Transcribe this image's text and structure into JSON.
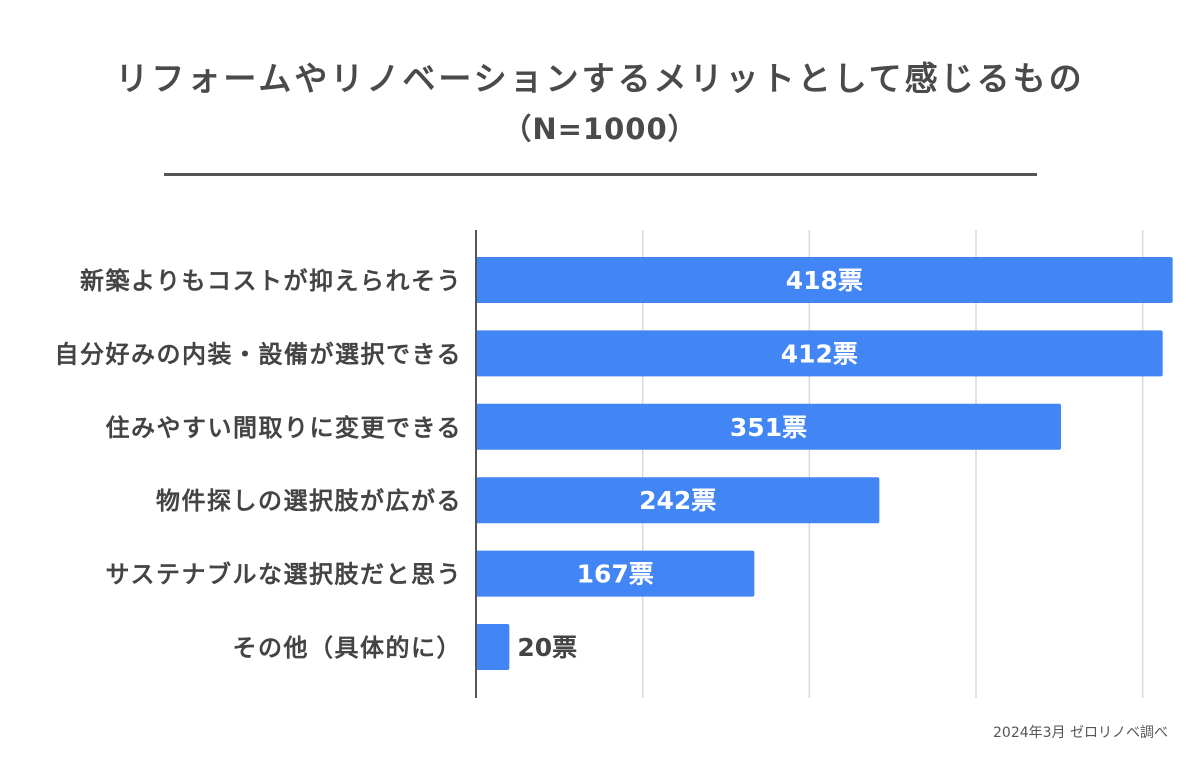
{
  "title": "リフォームやリノベーションするメリットとして感じるもの",
  "subtitle": "（N=1000）",
  "source": "2024年3月 ゼロリノベ調べ",
  "colors": {
    "bar": "#4285F4",
    "grid": "#d9d9d9",
    "axis": "#555555",
    "label": "#444444",
    "barText": "#ffffff"
  },
  "chart_data": {
    "type": "bar",
    "orientation": "horizontal",
    "title": "リフォームやリノベーションするメリットとして感じるもの",
    "subtitle": "（N=1000）",
    "categories": [
      "新築よりもコストが抑えられそう",
      "自分好みの内装・設備が選択できる",
      "住みやすい間取りに変更できる",
      "物件探しの選択肢が広がる",
      "サステナブルな選択肢だと思う",
      "その他（具体的に）"
    ],
    "values": [
      418,
      412,
      351,
      242,
      167,
      20
    ],
    "value_labels": [
      "418票",
      "412票",
      "351票",
      "242票",
      "167票",
      "20票"
    ],
    "xlim": [
      0,
      420
    ],
    "gridlines": [
      0,
      100,
      200,
      300,
      400
    ],
    "grid": true,
    "unit": "票"
  }
}
